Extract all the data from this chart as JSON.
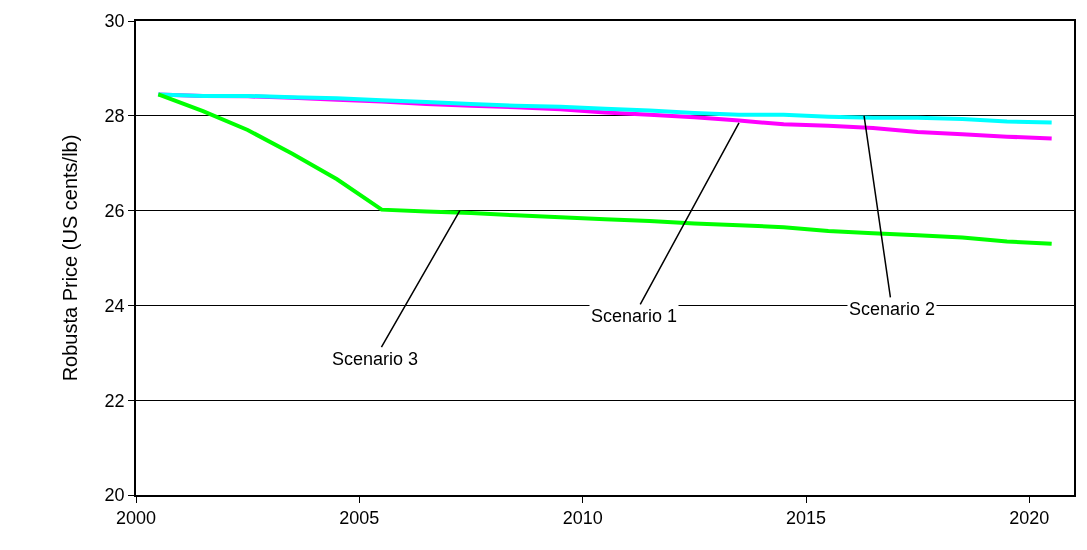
{
  "chart_data": {
    "type": "line",
    "ylabel": "Robusta Price (US cents/lb)",
    "x": [
      2000.5,
      2001.5,
      2002.5,
      2003.5,
      2004.5,
      2005.5,
      2006.5,
      2007.5,
      2008.5,
      2009.5,
      2010.5,
      2011.5,
      2012.5,
      2013.5,
      2014.5,
      2015.5,
      2016.5,
      2017.5,
      2018.5,
      2019.5,
      2020.5
    ],
    "series": [
      {
        "color": "#ff00ff",
        "values": [
          28.45,
          28.42,
          28.41,
          28.38,
          28.34,
          28.3,
          28.25,
          28.21,
          28.18,
          28.14,
          28.07,
          28.02,
          27.97,
          27.9,
          27.82,
          27.79,
          27.74,
          27.66,
          27.61,
          27.56,
          27.52
        ]
      },
      {
        "color": "#00ffff",
        "values": [
          28.45,
          28.42,
          28.42,
          28.39,
          28.37,
          28.33,
          28.29,
          28.25,
          28.21,
          28.19,
          28.15,
          28.11,
          28.06,
          28.02,
          28.02,
          27.98,
          27.96,
          27.96,
          27.93,
          27.88,
          27.86
        ]
      },
      {
        "color": "#00ff00",
        "values": [
          28.45,
          28.1,
          27.7,
          27.2,
          26.66,
          26.02,
          25.98,
          25.95,
          25.9,
          25.86,
          25.82,
          25.78,
          25.73,
          25.69,
          25.65,
          25.57,
          25.52,
          25.48,
          25.43,
          25.35,
          25.3
        ]
      }
    ],
    "xlim": [
      2000,
      2021
    ],
    "xticks": [
      2000,
      2005,
      2010,
      2015,
      2020
    ],
    "ylim": [
      20,
      30
    ],
    "yticks": [
      20,
      22,
      24,
      26,
      28,
      30
    ],
    "grid": "y",
    "marker": "none",
    "line_style": "solid",
    "annotations": [
      {
        "text": "Scenario 1",
        "x": 2013.5,
        "y": 27.85
      },
      {
        "text": "Scenario 2",
        "x": 2016.3,
        "y": 28.0
      },
      {
        "text": "Scenario 3",
        "x": 2007.25,
        "y": 26.0
      }
    ]
  }
}
